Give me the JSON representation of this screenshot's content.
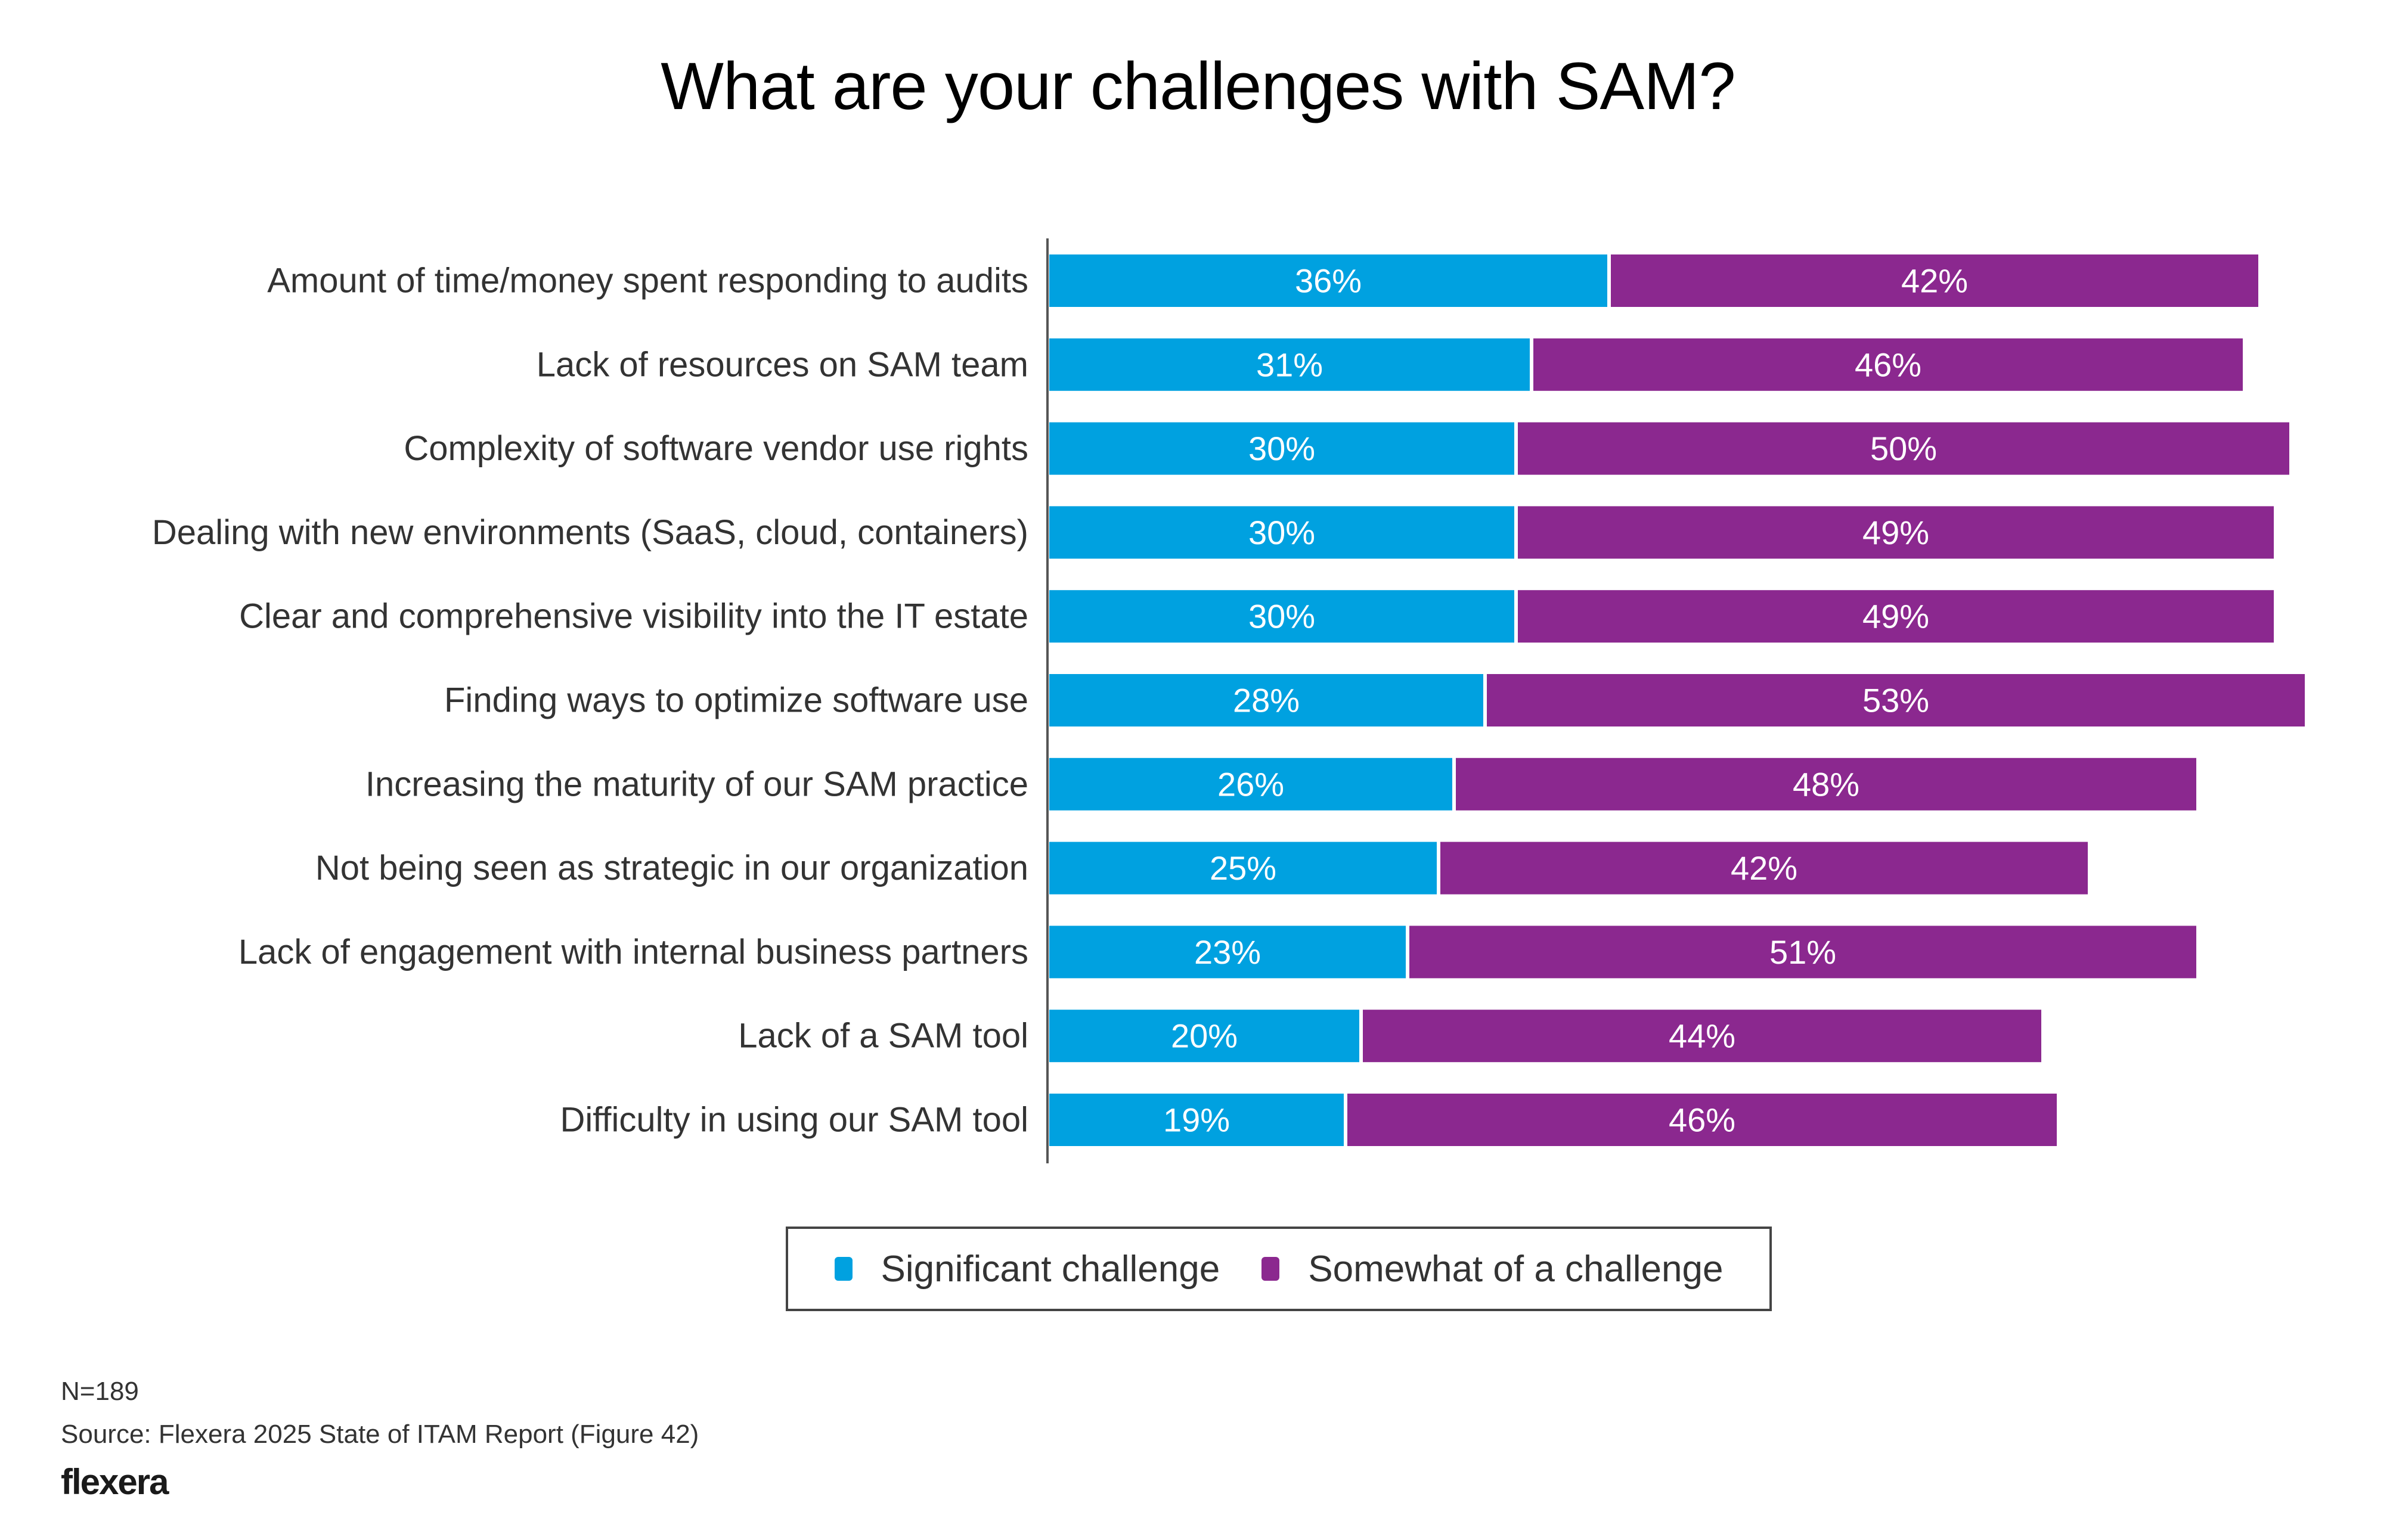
{
  "chart_data": {
    "type": "bar",
    "orientation": "horizontal",
    "stacked": true,
    "title": "What are your challenges with SAM?",
    "xlabel": "",
    "ylabel": "",
    "categories": [
      "Amount of time/money spent responding to audits",
      "Lack of resources on SAM team",
      "Complexity of software vendor use rights",
      "Dealing with new environments (SaaS, cloud, containers)",
      "Clear and comprehensive visibility into the IT estate",
      "Finding ways to optimize software use",
      "Increasing the maturity of our SAM practice",
      "Not being seen as strategic in our organization",
      "Lack of engagement with internal business partners",
      "Lack of a SAM tool",
      "Difficulty in using our SAM tool"
    ],
    "series": [
      {
        "name": "Significant challenge",
        "color": "#00a1e0",
        "values": [
          36,
          31,
          30,
          30,
          30,
          28,
          26,
          25,
          23,
          20,
          19
        ]
      },
      {
        "name": "Somewhat of a challenge",
        "color": "#8b288f",
        "values": [
          42,
          46,
          50,
          49,
          49,
          53,
          48,
          42,
          51,
          44,
          46
        ]
      }
    ],
    "value_format": "{v}%",
    "xlim": [
      0,
      100
    ],
    "grid": false,
    "legend_position": "bottom-center"
  },
  "notes": {
    "sample_size": "N=189",
    "source": "Source: Flexera 2025 State of ITAM Report (Figure 42)"
  },
  "brand": {
    "logo_text": "flexera"
  }
}
